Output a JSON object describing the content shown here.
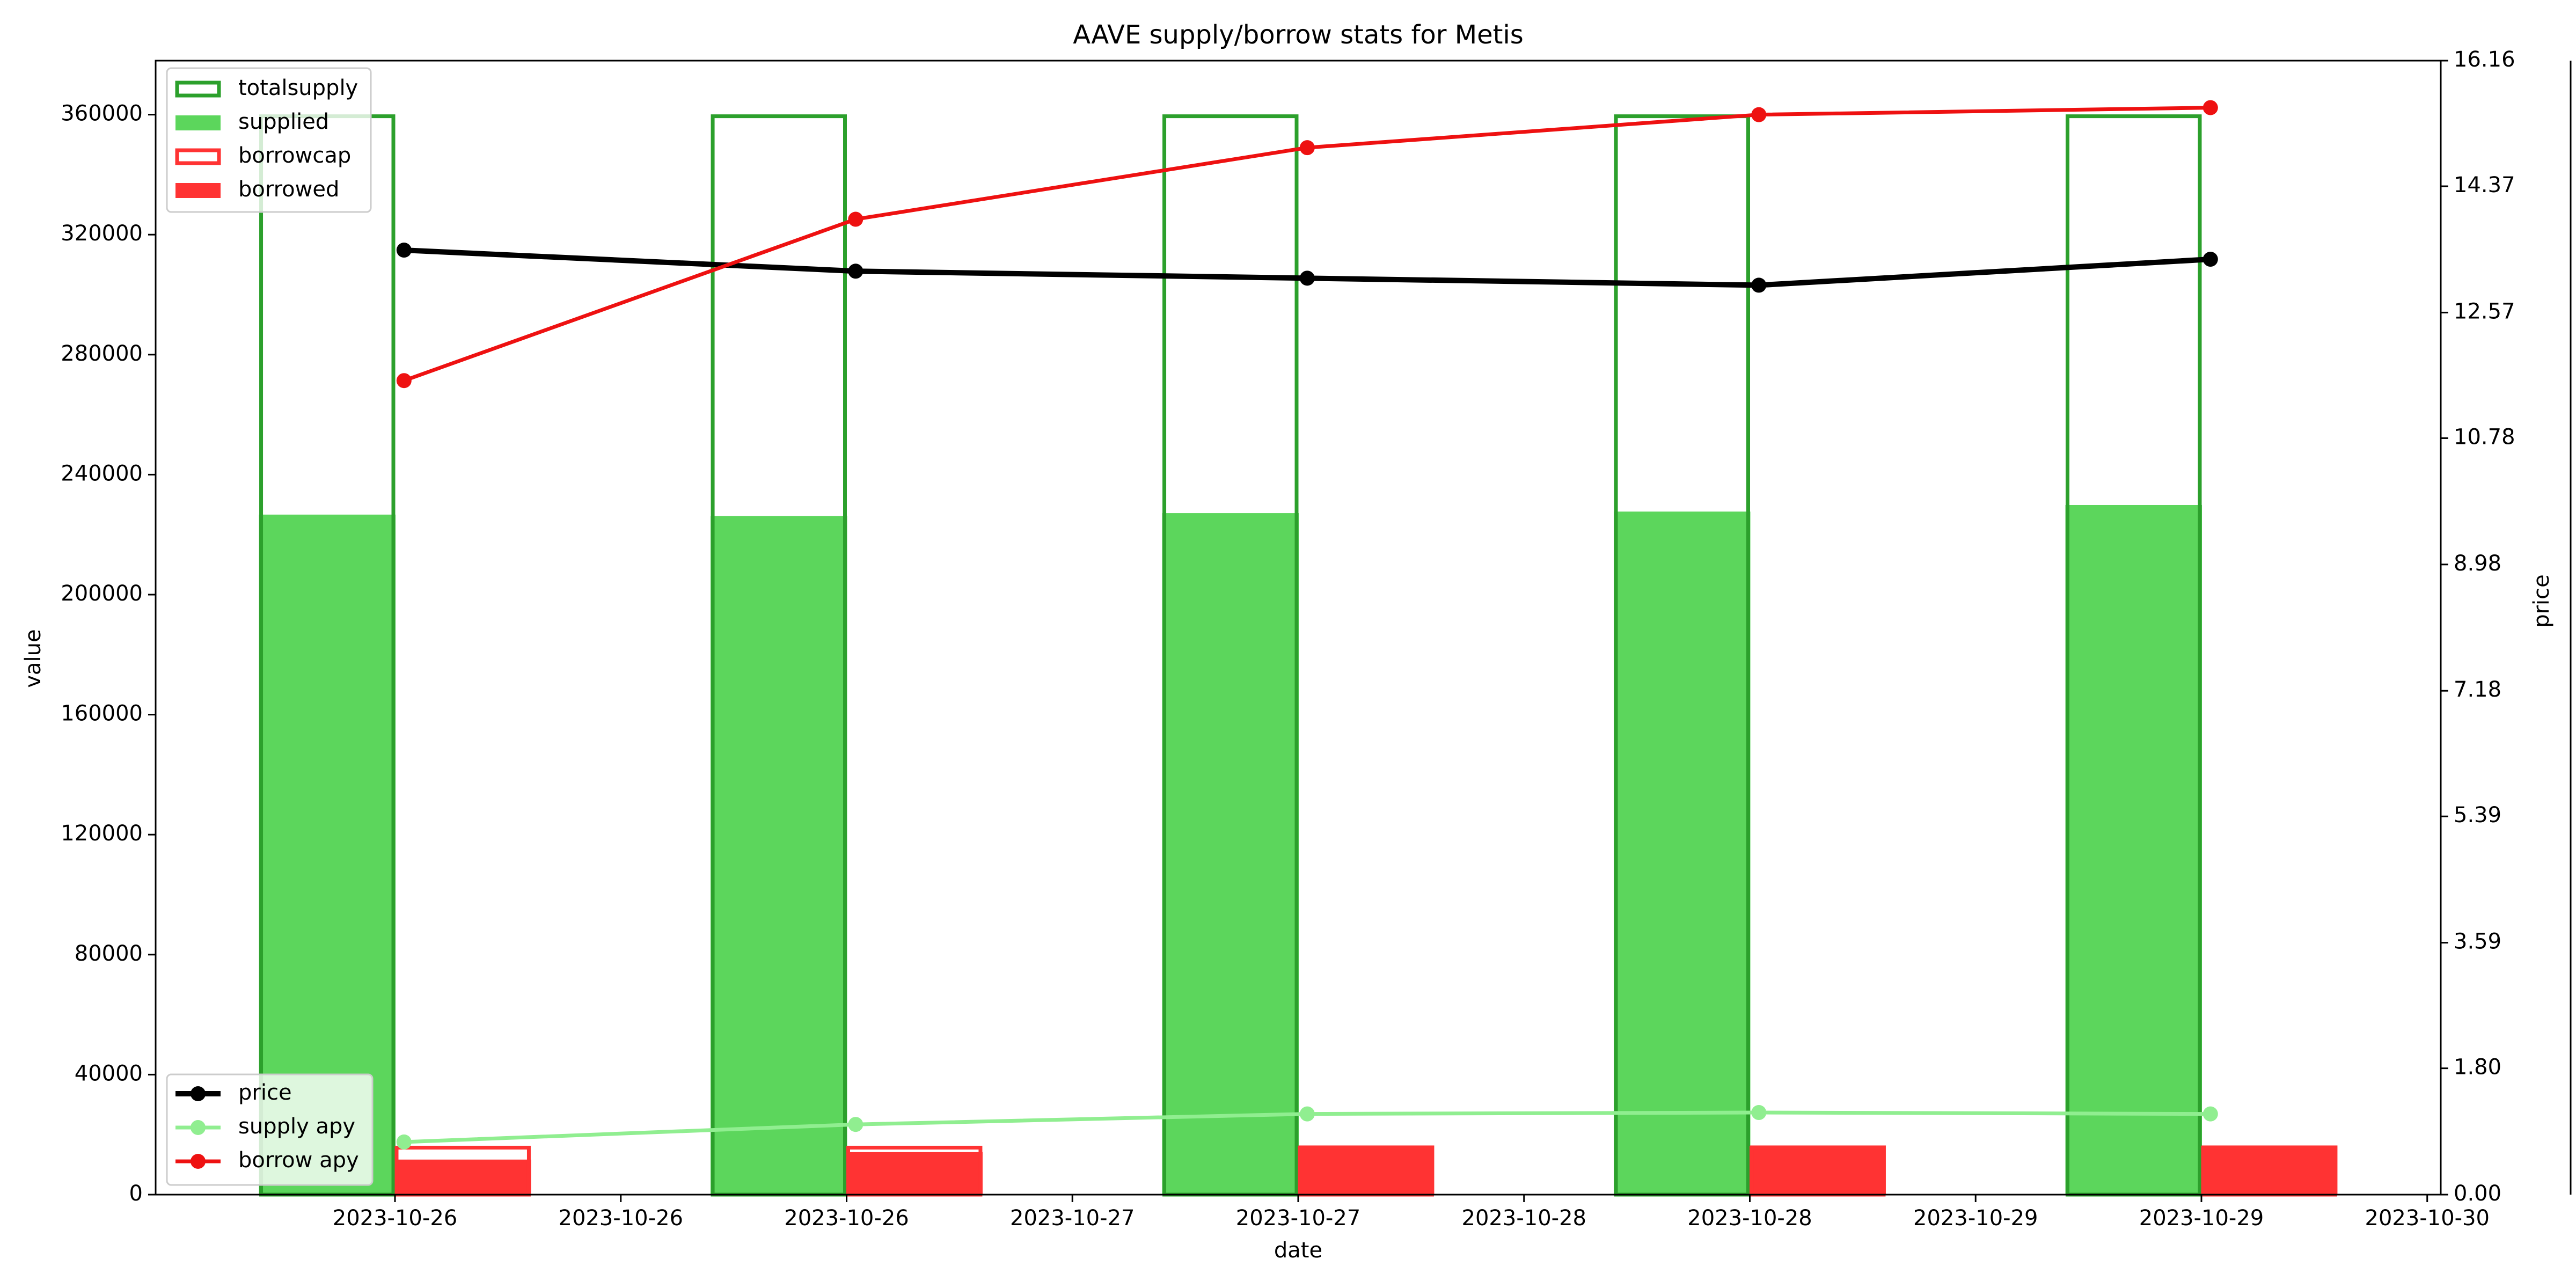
{
  "chart_data": {
    "type": "bar",
    "title": "AAVE supply/borrow stats for Metis",
    "xlabel": "date",
    "ylabel": "value",
    "ylabel_right": "price",
    "x_tick_labels": [
      "2023-10-26",
      "2023-10-26",
      "2023-10-26",
      "2023-10-27",
      "2023-10-27",
      "2023-10-28",
      "2023-10-28",
      "2023-10-29",
      "2023-10-29",
      "2023-10-30"
    ],
    "x_tick_positions": [
      0,
      0.5,
      1,
      1.5,
      2,
      2.5,
      3,
      3.5,
      4,
      4.5
    ],
    "x_point_positions": [
      0.02,
      1.02,
      2.02,
      3.02,
      4.02
    ],
    "xlim": [
      -0.53,
      4.53
    ],
    "ylim": [
      0,
      378000
    ],
    "y_ticks": [
      0,
      40000,
      80000,
      120000,
      160000,
      200000,
      240000,
      280000,
      320000,
      360000
    ],
    "y_right_ticks": [
      "0.00",
      "1.80",
      "3.59",
      "5.39",
      "7.18",
      "8.98",
      "10.78",
      "12.57",
      "14.37",
      "16.16"
    ],
    "y_right_lim": [
      0,
      16.16
    ],
    "grid": false,
    "legend_bars_position": "top-left",
    "legend_lines_position": "bottom-left",
    "bar_series": [
      {
        "name": "totalsupply",
        "style": "outline",
        "color": "#2ca02c",
        "offset": -0.15,
        "values": [
          360000,
          360000,
          360000,
          360000,
          360000
        ]
      },
      {
        "name": "supplied",
        "style": "filled",
        "color": "#5cd65c",
        "offset": -0.15,
        "values": [
          226500,
          226000,
          227000,
          227500,
          229700
        ]
      },
      {
        "name": "borrowcap",
        "style": "outline",
        "color": "#ff3333",
        "offset": 0.15,
        "values": [
          16200,
          16200,
          16200,
          16200,
          16200
        ]
      },
      {
        "name": "borrowed",
        "style": "filled",
        "color": "#ff3333",
        "offset": 0.15,
        "values": [
          11500,
          14000,
          16200,
          16200,
          16200
        ]
      }
    ],
    "line_series": [
      {
        "name": "price",
        "color": "#000000",
        "values": [
          13.46,
          13.16,
          13.06,
          12.96,
          13.33
        ]
      },
      {
        "name": "supply apy",
        "color": "#90ee90",
        "values": [
          0.75,
          1.0,
          1.15,
          1.17,
          1.15
        ]
      },
      {
        "name": "borrow apy",
        "color": "#ee1111",
        "values": [
          11.6,
          13.9,
          14.92,
          15.39,
          15.49
        ]
      }
    ]
  }
}
